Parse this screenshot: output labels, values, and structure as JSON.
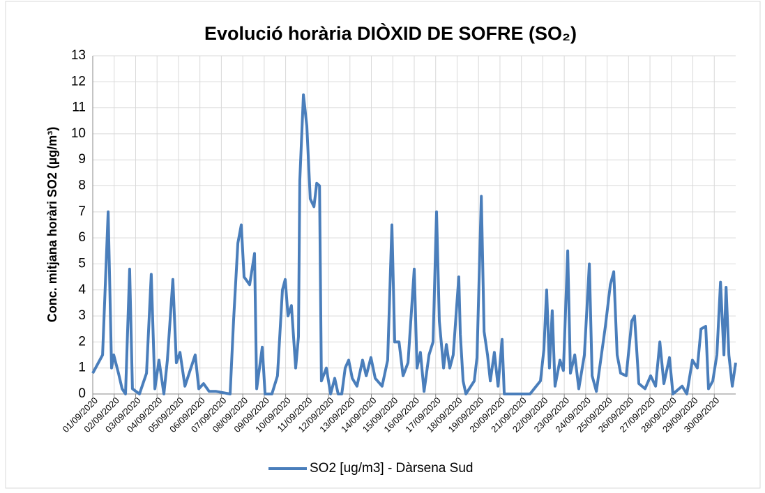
{
  "chart_data": {
    "type": "line",
    "title": "Evolució horària DIÒXID DE SOFRE (SO₂)",
    "y_label": "Conc. mitjana horàri SO2 (µg/m³)",
    "xlim": [
      0,
      30
    ],
    "ylim": [
      0,
      13
    ],
    "yticks": [
      0,
      1,
      2,
      3,
      4,
      5,
      6,
      7,
      8,
      9,
      10,
      11,
      12,
      13
    ],
    "xticks": [
      {
        "value": 0,
        "label": "01/09/2020"
      },
      {
        "value": 1,
        "label": "02/09/2020"
      },
      {
        "value": 2,
        "label": "03/09/2020"
      },
      {
        "value": 3,
        "label": "04/09/2020"
      },
      {
        "value": 4,
        "label": "05/09/2020"
      },
      {
        "value": 5,
        "label": "06/09/2020"
      },
      {
        "value": 6,
        "label": "07/09/2020"
      },
      {
        "value": 7,
        "label": "08/09/2020"
      },
      {
        "value": 8,
        "label": "09/09/2020"
      },
      {
        "value": 9,
        "label": "10/09/2020"
      },
      {
        "value": 10,
        "label": "11/09/2020"
      },
      {
        "value": 11,
        "label": "12/09/2020"
      },
      {
        "value": 12,
        "label": "13/09/2020"
      },
      {
        "value": 13,
        "label": "14/09/2020"
      },
      {
        "value": 14,
        "label": "15/09/2020"
      },
      {
        "value": 15,
        "label": "16/09/2020"
      },
      {
        "value": 16,
        "label": "17/09/2020"
      },
      {
        "value": 17,
        "label": "18/09/2020"
      },
      {
        "value": 18,
        "label": "19/09/2020"
      },
      {
        "value": 19,
        "label": "20/09/2020"
      },
      {
        "value": 20,
        "label": "21/09/2020"
      },
      {
        "value": 21,
        "label": "22/09/2020"
      },
      {
        "value": 22,
        "label": "23/09/2020"
      },
      {
        "value": 23,
        "label": "24/09/2020"
      },
      {
        "value": 24,
        "label": "25/09/2020"
      },
      {
        "value": 25,
        "label": "26/09/2020"
      },
      {
        "value": 26,
        "label": "27/09/2020"
      },
      {
        "value": 27,
        "label": "28/09/2020"
      },
      {
        "value": 28,
        "label": "29/09/2020"
      },
      {
        "value": 29,
        "label": "30/09/2020"
      }
    ],
    "grid": true,
    "x": [
      0,
      0.46,
      0.72,
      0.88,
      0.98,
      1.2,
      1.37,
      1.53,
      1.72,
      1.85,
      2.18,
      2.51,
      2.73,
      2.9,
      3.09,
      3.32,
      3.48,
      3.74,
      3.9,
      4.07,
      4.3,
      4.78,
      4.95,
      5.17,
      5.43,
      5.76,
      6.41,
      6.57,
      6.77,
      6.93,
      7.06,
      7.32,
      7.55,
      7.65,
      7.91,
      8.04,
      8.36,
      8.62,
      8.85,
      8.98,
      9.11,
      9.27,
      9.47,
      9.6,
      9.66,
      9.83,
      9.99,
      10.15,
      10.32,
      10.45,
      10.58,
      10.67,
      10.9,
      11.1,
      11.29,
      11.45,
      11.62,
      11.78,
      11.94,
      12.11,
      12.33,
      12.59,
      12.76,
      12.98,
      13.18,
      13.5,
      13.76,
      13.96,
      14.09,
      14.29,
      14.48,
      14.71,
      15.0,
      15.13,
      15.29,
      15.46,
      15.69,
      15.88,
      16.04,
      16.17,
      16.37,
      16.5,
      16.66,
      16.82,
      17.08,
      17.15,
      17.28,
      17.41,
      17.8,
      17.93,
      18.13,
      18.26,
      18.42,
      18.55,
      18.74,
      18.91,
      19.1,
      19.2,
      20.4,
      20.89,
      21.05,
      21.18,
      21.31,
      21.44,
      21.57,
      21.8,
      21.96,
      22.16,
      22.29,
      22.49,
      22.68,
      22.94,
      23.17,
      23.3,
      23.5,
      23.92,
      24.15,
      24.31,
      24.47,
      24.63,
      24.89,
      25.15,
      25.28,
      25.48,
      25.77,
      26.03,
      26.26,
      26.46,
      26.65,
      26.91,
      27.07,
      27.5,
      27.72,
      27.98,
      28.21,
      28.38,
      28.6,
      28.73,
      28.93,
      29.12,
      29.29,
      29.45,
      29.55,
      29.68,
      29.84,
      30.0
    ],
    "series": [
      {
        "name": "SO2 [ug/m3] - Dàrsena Sud",
        "color": "#4a7ebb",
        "values": [
          0.8,
          1.5,
          7.0,
          1.0,
          1.5,
          0.8,
          0.2,
          0,
          4.8,
          0.2,
          0,
          0.8,
          4.6,
          0.2,
          1.3,
          0,
          1.3,
          4.4,
          1.2,
          1.6,
          0.3,
          1.5,
          0.2,
          0.4,
          0.1,
          0.1,
          0,
          2.8,
          5.8,
          6.5,
          4.5,
          4.2,
          5.4,
          0.2,
          1.8,
          0,
          0,
          0.7,
          4.0,
          4.4,
          3.0,
          3.4,
          1.0,
          2.2,
          8.2,
          11.5,
          10.3,
          7.5,
          7.2,
          8.1,
          8.0,
          0.5,
          1.0,
          0,
          0.6,
          0,
          0,
          1.0,
          1.3,
          0.6,
          0.3,
          1.3,
          0.7,
          1.4,
          0.6,
          0.3,
          1.3,
          6.5,
          2.0,
          2.0,
          0.7,
          1.2,
          4.8,
          1.0,
          1.6,
          0.1,
          1.5,
          2.0,
          7.0,
          2.8,
          1.0,
          1.9,
          1.0,
          1.5,
          4.5,
          2.3,
          0.5,
          0,
          0.5,
          1.4,
          7.6,
          2.4,
          1.5,
          0.5,
          1.6,
          0.3,
          2.1,
          0,
          0,
          0.5,
          1.7,
          4.0,
          1.0,
          3.2,
          0.3,
          1.3,
          0.9,
          5.5,
          0.8,
          1.5,
          0.2,
          1.5,
          5.0,
          0.7,
          0.1,
          2.6,
          4.2,
          4.7,
          1.5,
          0.8,
          0.7,
          2.8,
          3.0,
          0.4,
          0.2,
          0.7,
          0.3,
          2.0,
          0.4,
          1.4,
          0,
          0.3,
          0,
          1.3,
          1.0,
          2.5,
          2.6,
          0.2,
          0.5,
          1.5,
          4.3,
          1.5,
          4.1,
          1.5,
          0.3,
          1.2
        ]
      }
    ]
  }
}
